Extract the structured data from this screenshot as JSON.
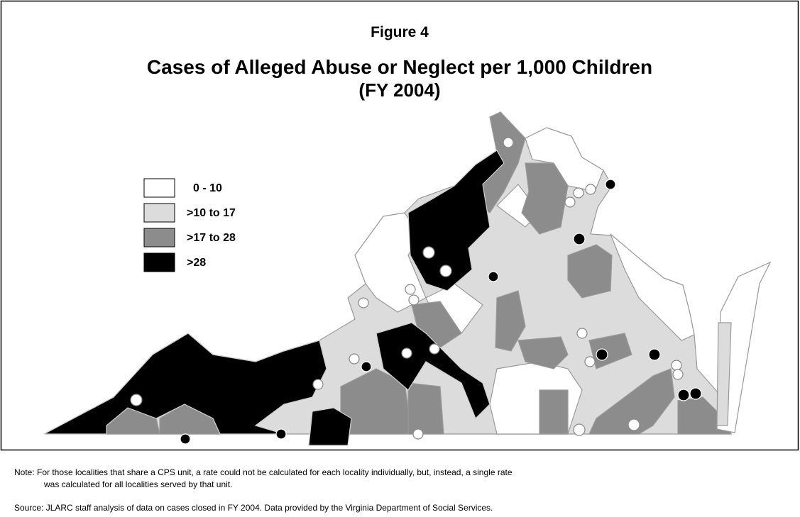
{
  "figure_label": "Figure 4",
  "title": "Cases of Alleged Abuse or Neglect per 1,000 Children",
  "subtitle": "(FY 2004)",
  "legend": [
    {
      "label": "0 - 10",
      "color": "#ffffff"
    },
    {
      "label": ">10 to 17",
      "color": "#dcdcdc"
    },
    {
      "label": ">17 to 28",
      "color": "#8c8c8c"
    },
    {
      "label": ">28",
      "color": "#000000"
    }
  ],
  "note": [
    "Note:  For those localities that share a CPS unit, a rate could not be calculated for each locality individually, but, instead, a single rate",
    "was calculated for all localities served by that unit."
  ],
  "source": "Source:  JLARC staff analysis of data on cases closed in FY 2004.  Data provided by the Virginia Department of Social Services."
}
